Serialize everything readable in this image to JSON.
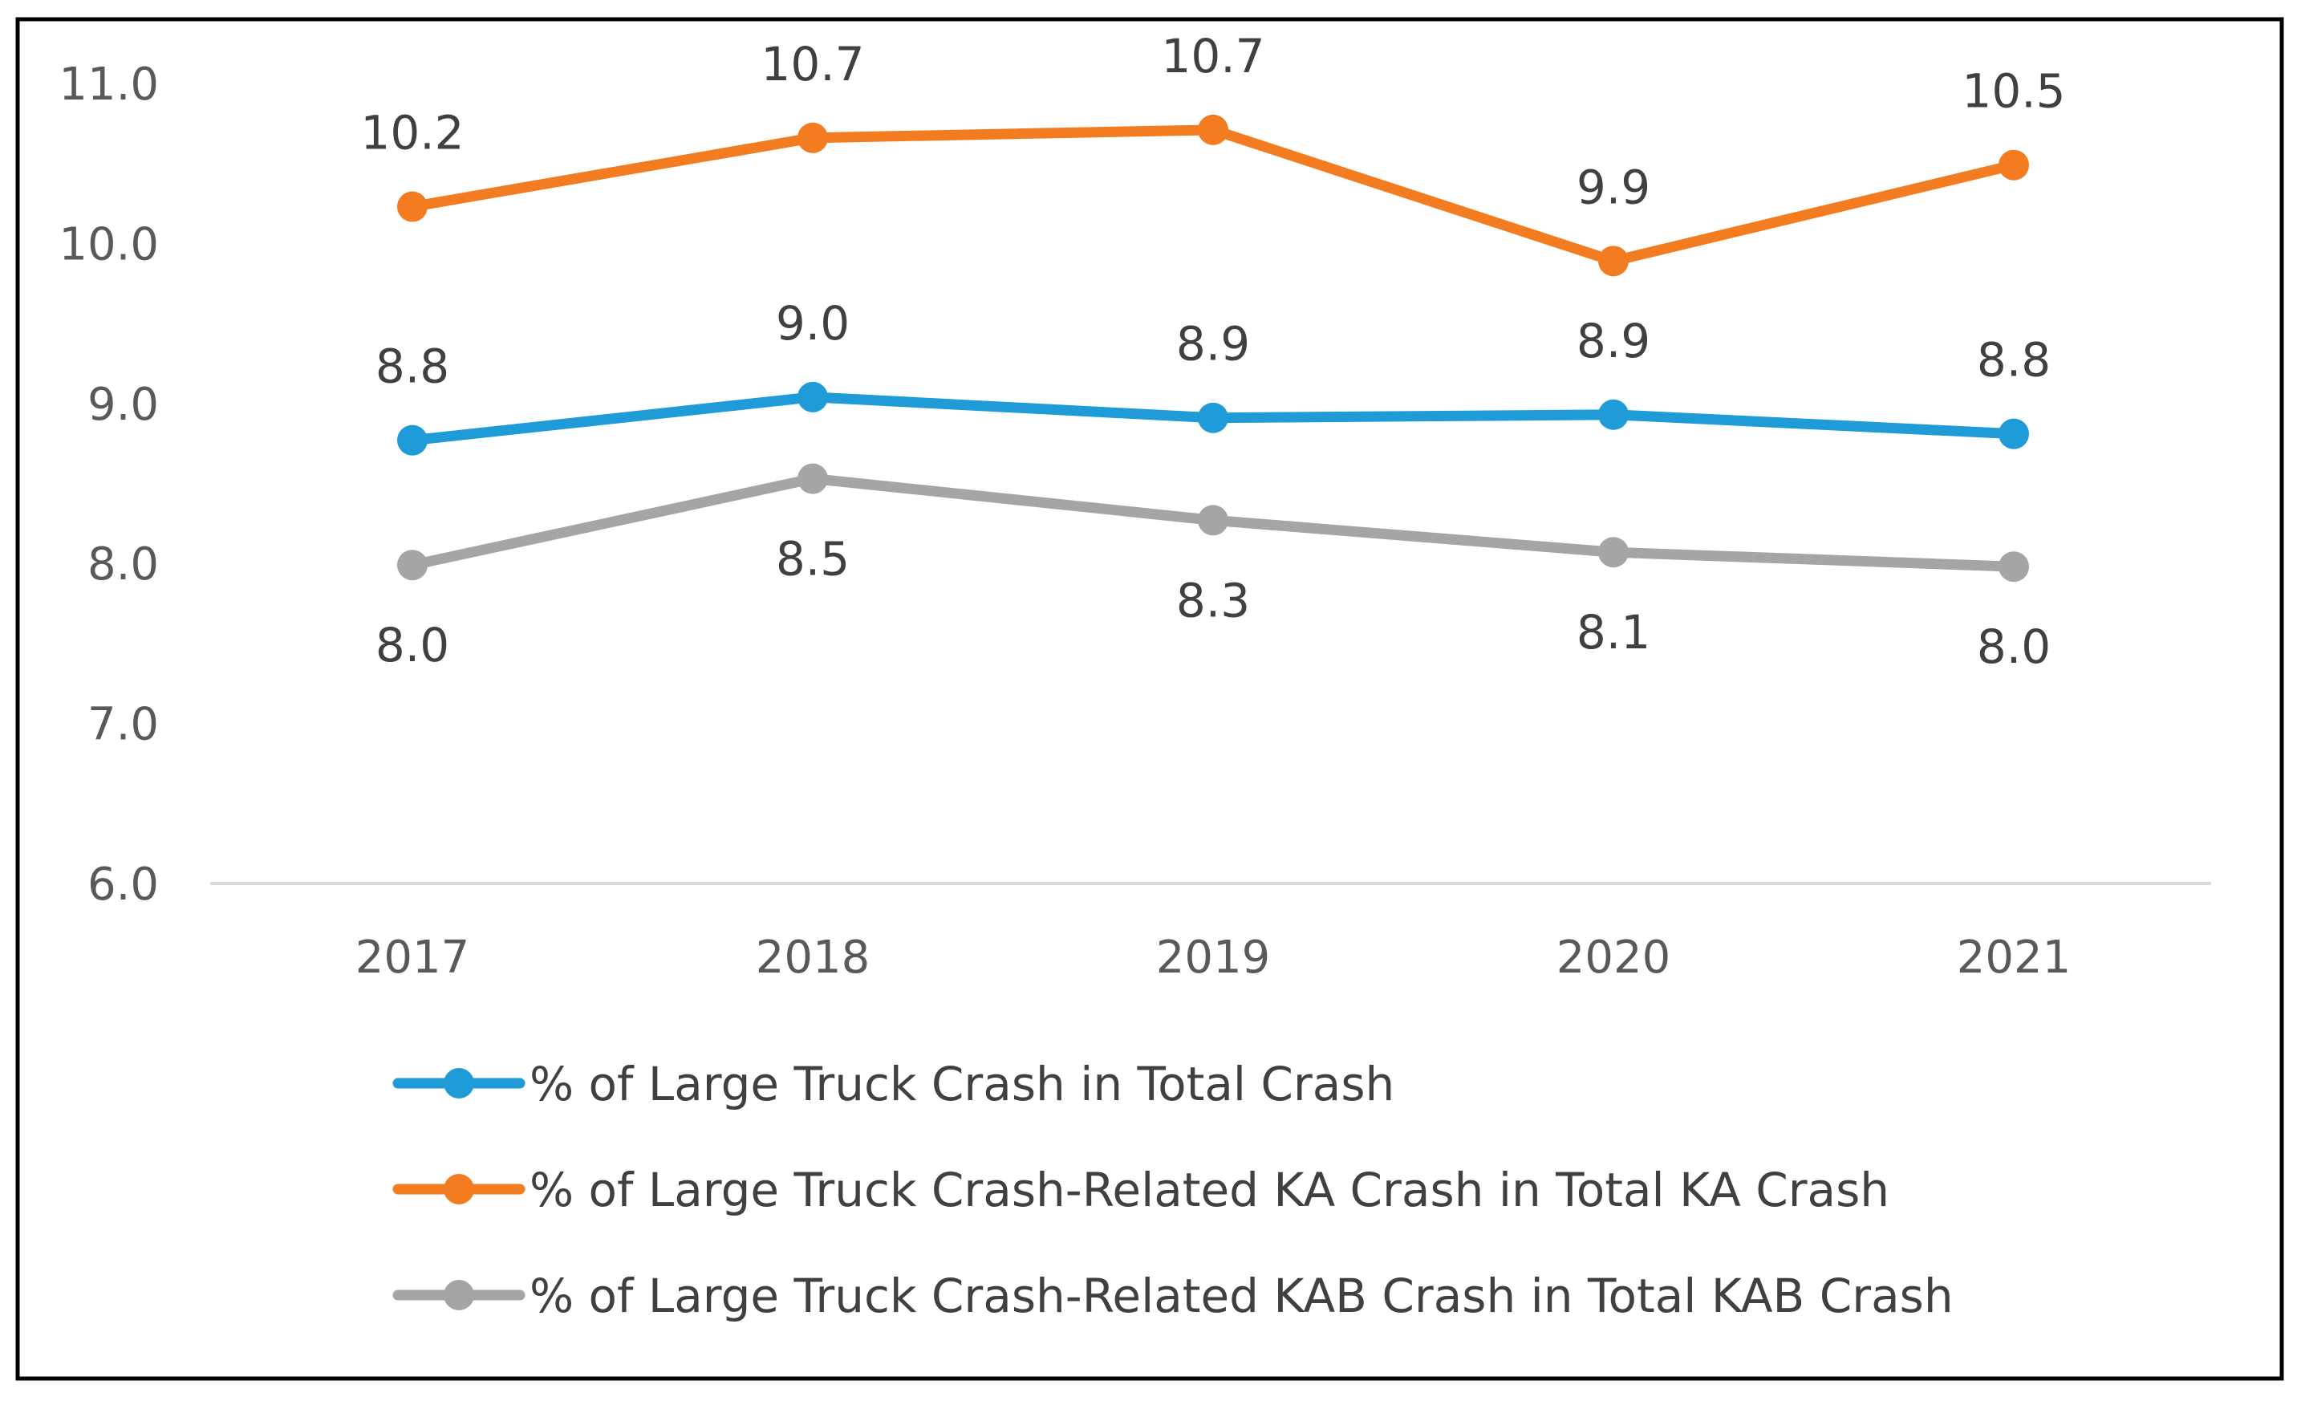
{
  "chart_data": {
    "type": "line",
    "title": "",
    "xlabel": "",
    "ylabel": "",
    "categories": [
      "2017",
      "2018",
      "2019",
      "2020",
      "2021"
    ],
    "ylim": [
      6.0,
      11.0
    ],
    "yticks": [
      "6.0",
      "7.0",
      "8.0",
      "9.0",
      "10.0",
      "11.0"
    ],
    "grid": false,
    "legend_position": "bottom",
    "series": [
      {
        "name": "% of Large Truck Crash in Total Crash",
        "color": "#1f9bd7",
        "values": [
          8.77,
          9.04,
          8.91,
          8.93,
          8.81
        ],
        "labels": [
          "8.8",
          "9.0",
          "8.9",
          "8.9",
          "8.8"
        ],
        "label_position": "above"
      },
      {
        "name": "% of Large Truck Crash-Related KA Crash in Total KA Crash",
        "color": "#f47c20",
        "values": [
          10.23,
          10.66,
          10.71,
          9.89,
          10.49
        ],
        "labels": [
          "10.2",
          "10.7",
          "10.7",
          "9.9",
          "10.5"
        ],
        "label_position": "above"
      },
      {
        "name": "% of Large Truck Crash-Related KAB Crash in Total KAB Crash",
        "color": "#a5a5a5",
        "values": [
          7.99,
          8.53,
          8.27,
          8.07,
          7.98
        ],
        "labels": [
          "8.0",
          "8.5",
          "8.3",
          "8.1",
          "8.0"
        ],
        "label_position": "below"
      }
    ]
  }
}
